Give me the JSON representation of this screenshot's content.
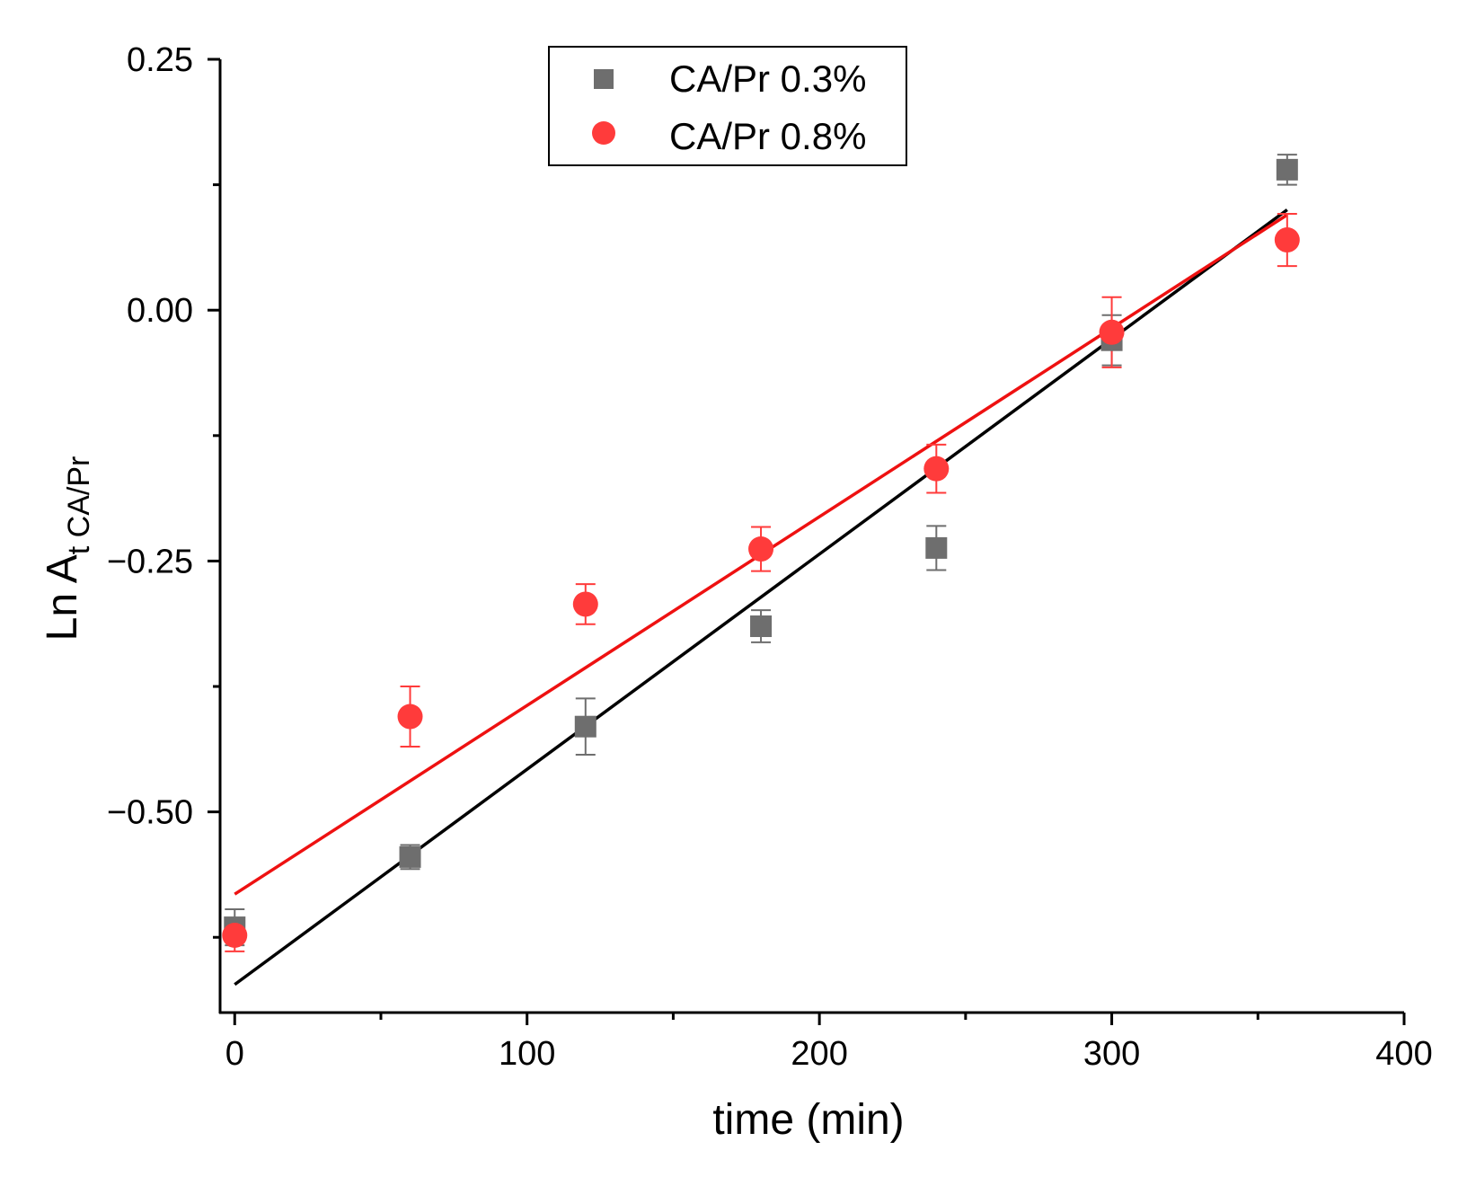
{
  "chart_data": {
    "type": "scatter",
    "title": "",
    "xlabel": "time (min)",
    "ylabel": "Ln A",
    "ylabel_subscript": "t CA/Pr",
    "xlim": [
      -5,
      400
    ],
    "ylim": [
      -0.7,
      0.25
    ],
    "x_ticks": [
      0,
      100,
      200,
      300,
      400
    ],
    "x_tick_labels": [
      "0",
      "100",
      "200",
      "300",
      "400"
    ],
    "x_minor_ticks": [
      50,
      150,
      250,
      350
    ],
    "y_ticks": [
      0.25,
      0,
      -0.25,
      -0.5
    ],
    "y_tick_labels": [
      "0.25",
      "0.00",
      "−0.25",
      "−0.50"
    ],
    "y_minor_ticks": [
      0.125,
      -0.125,
      -0.375,
      -0.625
    ],
    "grid": false,
    "legend_position": "top-center",
    "series": [
      {
        "name": "CA/Pr 0.3%",
        "marker": "square",
        "color": "#6e6e6e",
        "fit_color": "#000000",
        "x": [
          0,
          60,
          120,
          180,
          240,
          300,
          360
        ],
        "y": [
          -0.615,
          -0.545,
          -0.415,
          -0.315,
          -0.237,
          -0.03,
          0.14
        ],
        "err": [
          0.018,
          0.012,
          0.028,
          0.016,
          0.022,
          0.025,
          0.015
        ],
        "fit": {
          "x": [
            0,
            360
          ],
          "y": [
            -0.672,
            0.1
          ]
        }
      },
      {
        "name": "CA/Pr 0.8%",
        "marker": "circle",
        "color": "#ff3b3b",
        "fit_color": "#ee1111",
        "x": [
          0,
          60,
          120,
          180,
          240,
          300,
          360
        ],
        "y": [
          -0.623,
          -0.405,
          -0.293,
          -0.238,
          -0.158,
          -0.022,
          0.07
        ],
        "err": [
          0.016,
          0.03,
          0.02,
          0.022,
          0.024,
          0.035,
          0.026
        ],
        "fit": {
          "x": [
            0,
            360
          ],
          "y": [
            -0.582,
            0.095
          ]
        }
      }
    ]
  }
}
